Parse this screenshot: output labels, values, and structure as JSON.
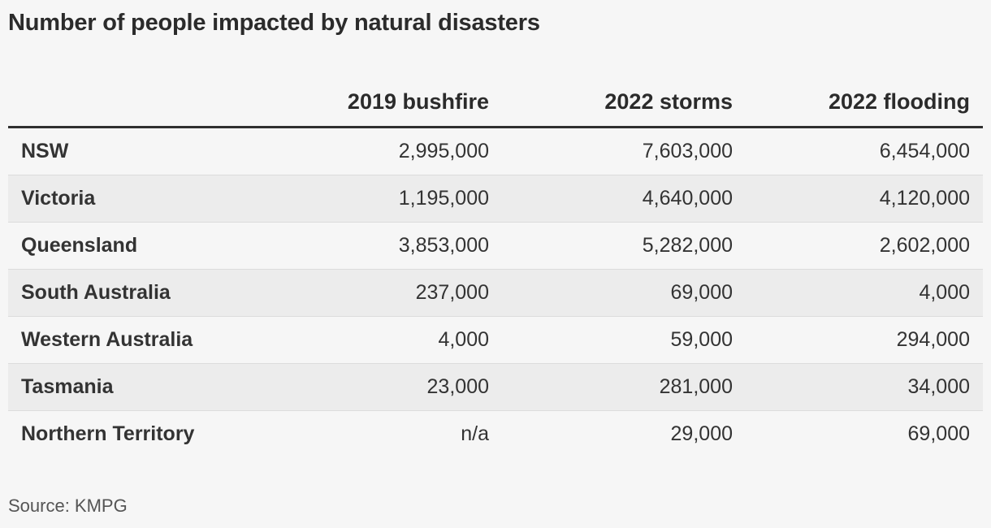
{
  "chart_data": {
    "type": "table",
    "title": "Number of people impacted by natural disasters",
    "columns": [
      "2019 bushfire",
      "2022 storms",
      "2022 flooding"
    ],
    "rows": [
      {
        "region": "NSW",
        "values": [
          "2,995,000",
          "7,603,000",
          "6,454,000"
        ]
      },
      {
        "region": "Victoria",
        "values": [
          "1,195,000",
          "4,640,000",
          "4,120,000"
        ]
      },
      {
        "region": "Queensland",
        "values": [
          "3,853,000",
          "5,282,000",
          "2,602,000"
        ]
      },
      {
        "region": "South Australia",
        "values": [
          "237,000",
          "69,000",
          "4,000"
        ]
      },
      {
        "region": "Western Australia",
        "values": [
          "4,000",
          "59,000",
          "294,000"
        ]
      },
      {
        "region": "Tasmania",
        "values": [
          "23,000",
          "281,000",
          "34,000"
        ]
      },
      {
        "region": "Northern Territory",
        "values": [
          "n/a",
          "29,000",
          "69,000"
        ]
      }
    ],
    "source": "Source: KMPG"
  }
}
